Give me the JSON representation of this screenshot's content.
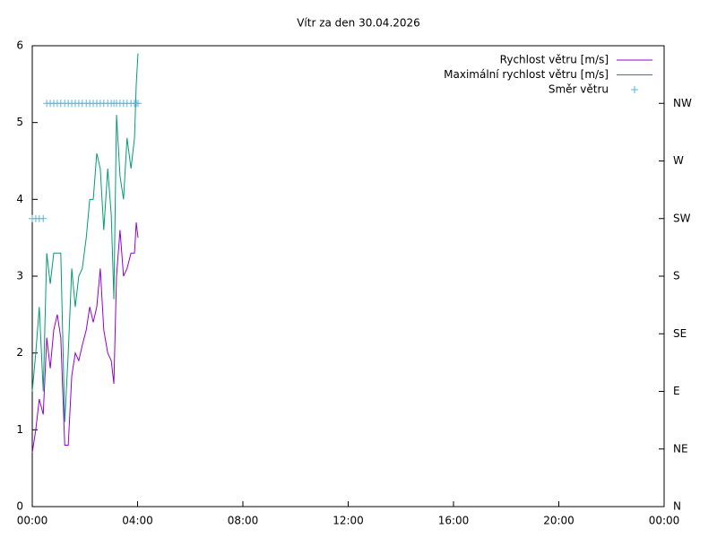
{
  "chart_data": {
    "type": "line",
    "title": "Vítr za den 30.04.2026",
    "xlim": [
      0,
      1440
    ],
    "xticks": [
      {
        "value": 0,
        "label": "00:00"
      },
      {
        "value": 240,
        "label": "04:00"
      },
      {
        "value": 480,
        "label": "08:00"
      },
      {
        "value": 720,
        "label": "12:00"
      },
      {
        "value": 960,
        "label": "16:00"
      },
      {
        "value": 1200,
        "label": "20:00"
      },
      {
        "value": 1440,
        "label": "00:00"
      }
    ],
    "ylim": [
      0,
      6
    ],
    "yticks": [
      0,
      1,
      2,
      3,
      4,
      5,
      6
    ],
    "y2lim": [
      0,
      360
    ],
    "y2ticks": [
      {
        "value": 0,
        "label": "N"
      },
      {
        "value": 45,
        "label": "NE"
      },
      {
        "value": 90,
        "label": "E"
      },
      {
        "value": 135,
        "label": "SE"
      },
      {
        "value": 180,
        "label": "S"
      },
      {
        "value": 225,
        "label": "SW"
      },
      {
        "value": 270,
        "label": "W"
      },
      {
        "value": 315,
        "label": "NW"
      }
    ],
    "legend": "top-right",
    "x": [
      0,
      8,
      16,
      25,
      33,
      41,
      49,
      57,
      65,
      74,
      82,
      90,
      98,
      106,
      114,
      123,
      131,
      139,
      147,
      155,
      163,
      172,
      180,
      186,
      192,
      200,
      208,
      216,
      225,
      233,
      237,
      241
    ],
    "series": [
      {
        "name": "Rychlost větru [m/s]",
        "color": "#9400d3",
        "style": "lines",
        "values": [
          0.7,
          1.0,
          1.4,
          1.2,
          2.2,
          1.8,
          2.3,
          2.5,
          2.2,
          0.8,
          0.8,
          1.7,
          2.0,
          1.9,
          2.1,
          2.3,
          2.6,
          2.4,
          2.6,
          3.1,
          2.3,
          2.0,
          1.9,
          1.6,
          3.0,
          3.6,
          3.0,
          3.1,
          3.3,
          3.3,
          3.7,
          3.5
        ]
      },
      {
        "name": "Maximální rychlost větru [m/s]",
        "color": "#009e73",
        "style": "lines",
        "values": [
          1.5,
          2.0,
          2.6,
          1.5,
          3.3,
          2.9,
          3.3,
          3.3,
          3.3,
          1.1,
          2.0,
          3.1,
          2.6,
          3.0,
          3.1,
          3.5,
          4.0,
          4.0,
          4.6,
          4.4,
          3.6,
          4.4,
          3.8,
          2.7,
          5.1,
          4.3,
          4.0,
          4.8,
          4.4,
          4.8,
          5.5,
          5.9
        ]
      },
      {
        "name": "Směr větru",
        "color": "#56b4e9",
        "style": "points",
        "axis": "y2",
        "values": [
          225,
          225,
          225,
          225,
          315,
          315,
          315,
          315,
          315,
          315,
          315,
          315,
          315,
          315,
          315,
          315,
          315,
          315,
          315,
          315,
          315,
          315,
          315,
          315,
          315,
          315,
          315,
          315,
          315,
          315,
          315,
          315
        ]
      }
    ]
  }
}
